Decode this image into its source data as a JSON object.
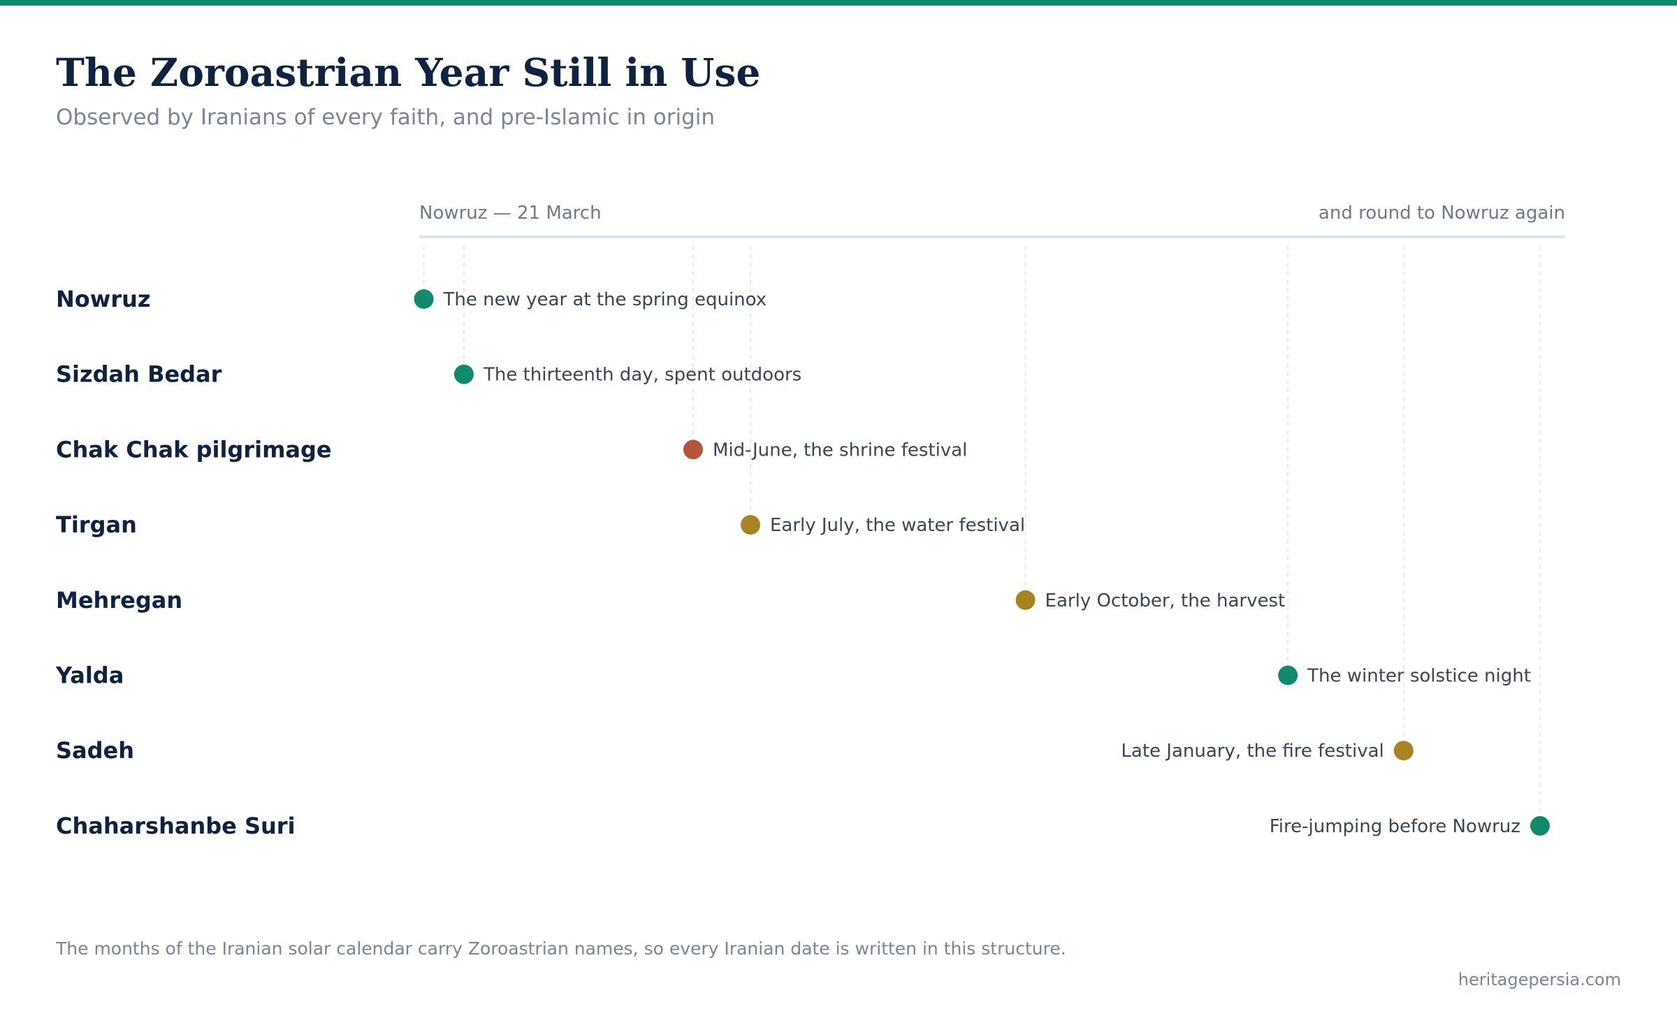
{
  "colors": {
    "accent": "#12896d",
    "red": "#b5533c",
    "gold": "#a88321",
    "title": "#0f2340",
    "muted": "#7a8597",
    "axis_line": "#e1e5ee",
    "grid": "#e6e8ec"
  },
  "header": {
    "title": "The Zoroastrian Year Still in Use",
    "subtitle": "Observed by Iranians of every faith, and pre-Islamic in origin"
  },
  "chart_data": {
    "type": "timeline",
    "x_start_label": "Nowruz — 21 March",
    "x_end_label": "and round to Nowruz again",
    "xlim": [
      0,
      1
    ],
    "grid": true,
    "series": [
      {
        "category": "Nowruz",
        "x": 0.004,
        "label": "The new year at the spring equinox",
        "color": "#12896d",
        "label_side": "right"
      },
      {
        "category": "Sizdah Bedar",
        "x": 0.039,
        "label": "The thirteenth day, spent outdoors",
        "color": "#12896d",
        "label_side": "right"
      },
      {
        "category": "Chak Chak pilgrimage",
        "x": 0.239,
        "label": "Mid-June, the shrine festival",
        "color": "#b5533c",
        "label_side": "right"
      },
      {
        "category": "Tirgan",
        "x": 0.289,
        "label": "Early July, the water festival",
        "color": "#a88321",
        "label_side": "right"
      },
      {
        "category": "Mehregan",
        "x": 0.529,
        "label": "Early October, the harvest",
        "color": "#a88321",
        "label_side": "right"
      },
      {
        "category": "Yalda",
        "x": 0.758,
        "label": "The winter solstice night",
        "color": "#12896d",
        "label_side": "right"
      },
      {
        "category": "Sadeh",
        "x": 0.859,
        "label": "Late January, the fire festival",
        "color": "#a88321",
        "label_side": "left"
      },
      {
        "category": "Chaharshanbe Suri",
        "x": 0.978,
        "label": "Fire-jumping before Nowruz",
        "color": "#12896d",
        "label_side": "left"
      }
    ]
  },
  "footer": {
    "note": "The months of the Iranian solar calendar carry Zoroastrian names, so every Iranian date is written in this structure.",
    "source": "heritagepersia.com"
  }
}
